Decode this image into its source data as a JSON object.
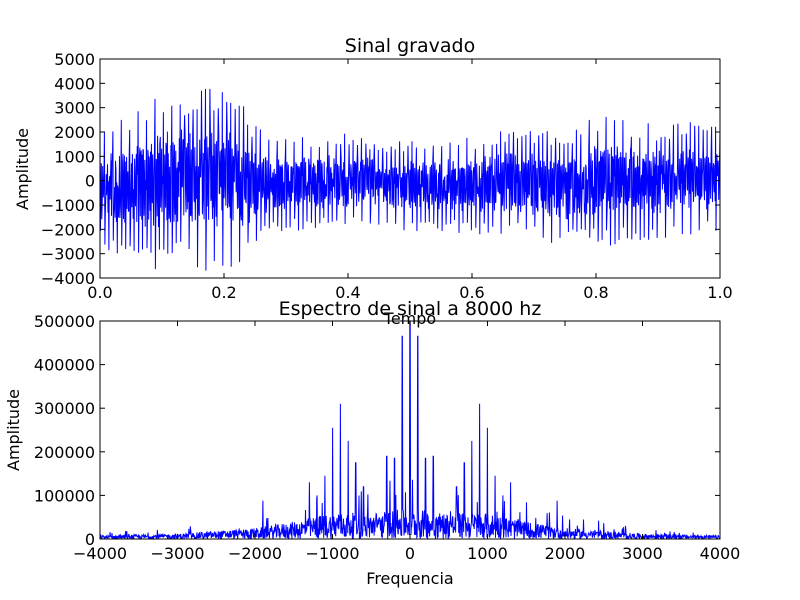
{
  "chart_data": [
    {
      "type": "line",
      "title": "Sinal gravado",
      "xlabel": "Tempo",
      "ylabel": "Amplitude",
      "xlim": [
        0.0,
        1.0
      ],
      "ylim": [
        -4000,
        5000
      ],
      "xticks": [
        "0.0",
        "0.2",
        "0.4",
        "0.6",
        "0.8",
        "1.0"
      ],
      "yticks": [
        "−4000",
        "−3000",
        "−2000",
        "−1000",
        "0",
        "1000",
        "2000",
        "3000",
        "4000",
        "5000"
      ],
      "grid": false,
      "series": [
        {
          "color": "#0000ff",
          "envelope": {
            "t": [
              0.0,
              0.02,
              0.05,
              0.08,
              0.1,
              0.12,
              0.15,
              0.18,
              0.2,
              0.22,
              0.25,
              0.28,
              0.3,
              0.35,
              0.4,
              0.45,
              0.5,
              0.55,
              0.6,
              0.65,
              0.7,
              0.75,
              0.8,
              0.85,
              0.9,
              0.95,
              1.0
            ],
            "max": [
              1800,
              2600,
              3000,
              3600,
              3900,
              3700,
              3800,
              3900,
              4200,
              3600,
              2300,
              1900,
              1900,
              1900,
              2000,
              1700,
              1700,
              1800,
              1800,
              2100,
              2200,
              2000,
              2800,
              2600,
              2300,
              2500,
              2200
            ],
            "min": [
              -2600,
              -3000,
              -3500,
              -3800,
              -3700,
              -3500,
              -3600,
              -3800,
              -3600,
              -3700,
              -2700,
              -2200,
              -2100,
              -2000,
              -2100,
              -2000,
              -2100,
              -2100,
              -2200,
              -2300,
              -2600,
              -2700,
              -2800,
              -2600,
              -2400,
              -2300,
              -2400
            ]
          }
        }
      ]
    },
    {
      "type": "line",
      "title": "Espectro de sinal a 8000 hz",
      "xlabel": "Frequencia",
      "ylabel": "Amplitude",
      "xlim": [
        -4000,
        4000
      ],
      "ylim": [
        0,
        500000
      ],
      "xticks": [
        "−4000",
        "−3000",
        "−2000",
        "−1000",
        "0",
        "1000",
        "2000",
        "3000",
        "4000"
      ],
      "yticks": [
        "0",
        "100000",
        "200000",
        "300000",
        "400000",
        "500000"
      ],
      "grid": false,
      "series": [
        {
          "color": "#0000ff",
          "peaks": {
            "x": [
              -100,
              0,
              100,
              -900,
              900,
              -1000,
              1000,
              -800,
              800,
              -200,
              200,
              -300,
              300,
              -700,
              700,
              -1100,
              1100,
              -1300,
              1300,
              -1900,
              1900,
              -1200,
              1200,
              -600,
              600
            ],
            "y": [
              465000,
              500000,
              465000,
              310000,
              310000,
              255000,
              255000,
              225000,
              225000,
              185000,
              185000,
              190000,
              190000,
              175000,
              175000,
              145000,
              145000,
              130000,
              130000,
              88000,
              88000,
              100000,
              100000,
              120000,
              120000
            ]
          },
          "noise_floor": {
            "x": [
              -4000,
              -3000,
              -2000,
              -1500,
              -1000,
              -500,
              0,
              500,
              1000,
              1500,
              2000,
              3000,
              4000
            ],
            "y": [
              8000,
              12000,
              25000,
              40000,
              60000,
              60000,
              70000,
              60000,
              60000,
              40000,
              25000,
              12000,
              8000
            ]
          }
        }
      ]
    }
  ]
}
